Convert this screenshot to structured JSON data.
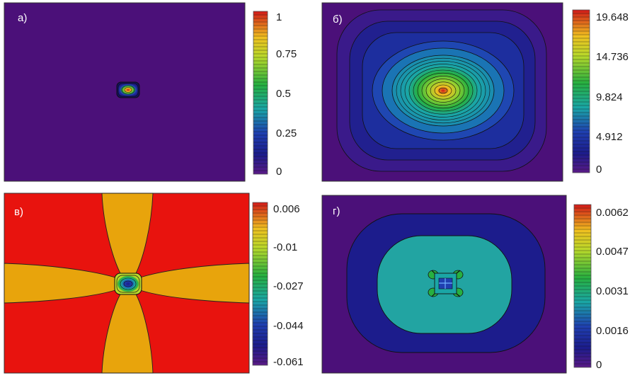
{
  "chart_data": [
    {
      "type": "heatmap",
      "panel_label": "а)",
      "colorbar_ticks": [
        "1",
        "0.75",
        "0.5",
        "0.25",
        "0"
      ],
      "colorbar_range": [
        0,
        1
      ],
      "field": "single small peak at centre, value 1; background 0"
    },
    {
      "type": "heatmap",
      "panel_label": "б)",
      "colorbar_ticks": [
        "19.648",
        "14.736",
        "9.824",
        "4.912",
        "0"
      ],
      "colorbar_range": [
        0,
        19.648
      ],
      "field": "broad centred maximum 19.648 decreasing to 0 at the boundary"
    },
    {
      "type": "heatmap",
      "panel_label": "в)",
      "colorbar_ticks": [
        "0.006",
        "-0.01",
        "-0.027",
        "-0.044",
        "-0.061"
      ],
      "colorbar_range": [
        -0.061,
        0.006
      ],
      "field": "cross-shaped pattern with minimum -0.061 at centre"
    },
    {
      "type": "heatmap",
      "panel_label": "г)",
      "colorbar_ticks": [
        "0.0062",
        "0.0047",
        "0.0031",
        "0.0016",
        "0"
      ],
      "colorbar_range": [
        0,
        0.0062
      ],
      "field": "nested rounded plateaus around a small central feature"
    }
  ]
}
